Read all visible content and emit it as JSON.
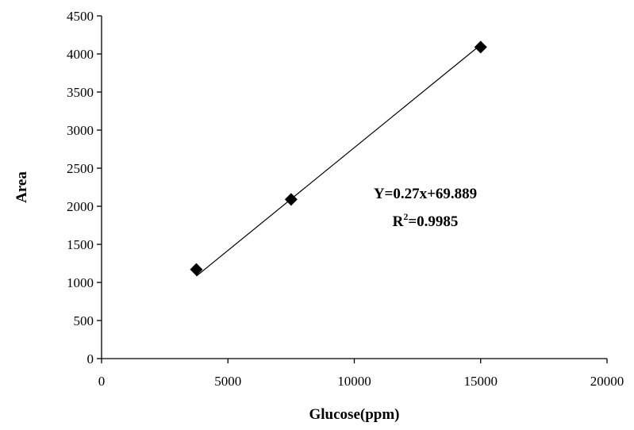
{
  "chart_data": {
    "type": "scatter",
    "title": "",
    "xlabel": "Glucose(ppm)",
    "ylabel": "Area",
    "xlim": [
      0,
      20000
    ],
    "ylim": [
      0,
      4500
    ],
    "x_ticks": [
      0,
      5000,
      10000,
      15000,
      20000
    ],
    "y_ticks": [
      0,
      500,
      1000,
      1500,
      2000,
      2500,
      3000,
      3500,
      4000,
      4500
    ],
    "grid": false,
    "legend": "none",
    "series": [
      {
        "marker": "diamond",
        "x": [
          3750,
          7500,
          15000
        ],
        "y": [
          1170,
          2090,
          4090
        ]
      }
    ],
    "trendline": {
      "type": "linear",
      "slope": 0.27,
      "intercept": 69.889,
      "x_range": [
        3750,
        15000
      ]
    },
    "annotations": {
      "equation": "Y=0.27x+69.889",
      "r2_prefix": "R",
      "r2_superscript": "2",
      "r2_value": "=0.9985"
    }
  }
}
